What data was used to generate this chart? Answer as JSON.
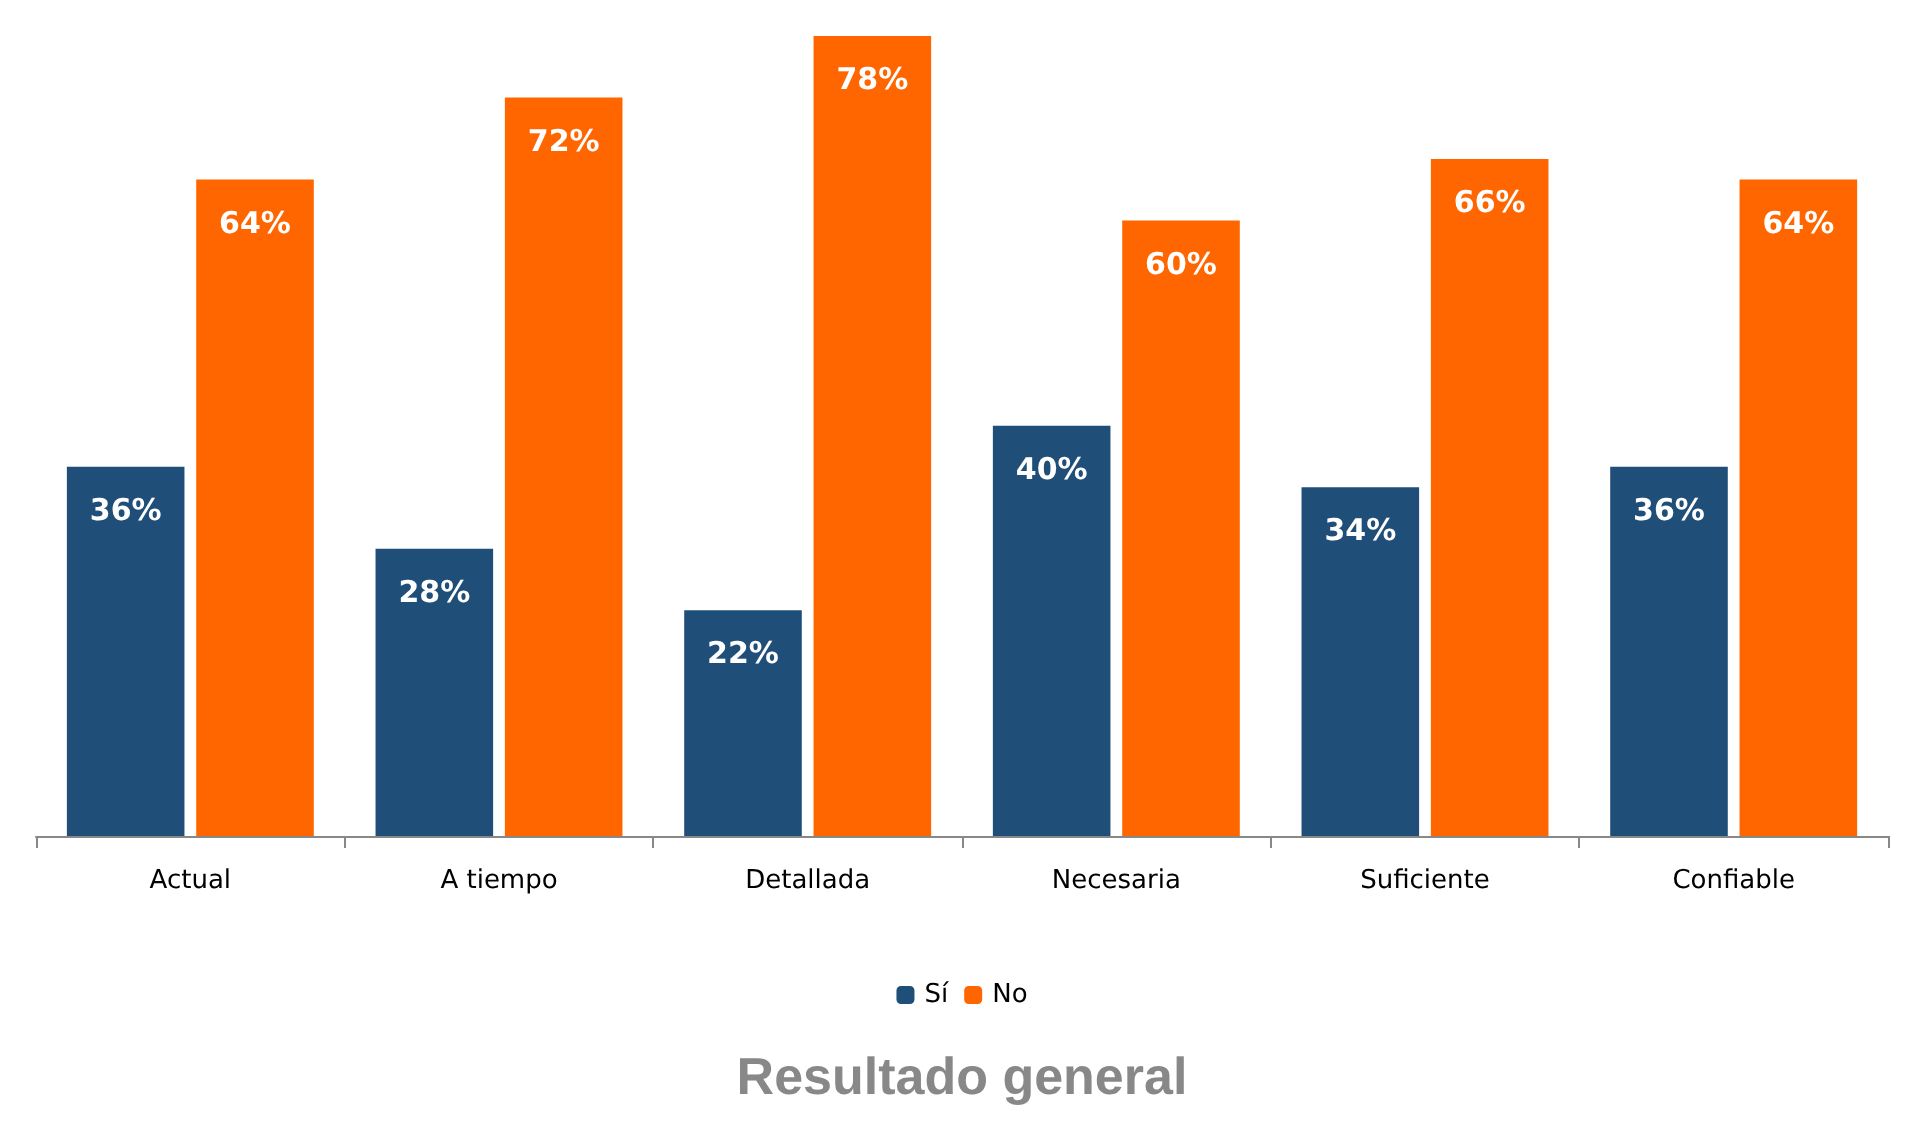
{
  "chart_data": {
    "type": "bar",
    "title": "Resultado general",
    "categories": [
      "Actual",
      "A tiempo",
      "Detallada",
      "Necesaria",
      "Suficiente",
      "Confiable"
    ],
    "series": [
      {
        "name": "Sí",
        "color": "#1f4e79",
        "values": [
          36,
          28,
          22,
          40,
          34,
          36
        ],
        "value_labels": [
          "36%",
          "28%",
          "22%",
          "40%",
          "34%",
          "36%"
        ]
      },
      {
        "name": "No",
        "color": "#ff6600",
        "values": [
          64,
          72,
          78,
          60,
          66,
          64
        ],
        "value_labels": [
          "64%",
          "72%",
          "78%",
          "60%",
          "66%",
          "64%"
        ]
      }
    ],
    "legend": "bottom"
  }
}
